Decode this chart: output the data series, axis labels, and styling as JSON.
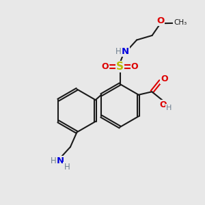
{
  "bg_color": "#e8e8e8",
  "bond_color": "#1a1a1a",
  "N_color": "#0000dd",
  "O_color": "#dd0000",
  "S_color": "#bbbb00",
  "H_color": "#708090",
  "font_size": 9,
  "bond_lw": 1.5,
  "ring_r": 1.05,
  "figsize": [
    3.0,
    3.0
  ],
  "dpi": 100,
  "xlim": [
    0,
    10
  ],
  "ylim": [
    0,
    10
  ]
}
